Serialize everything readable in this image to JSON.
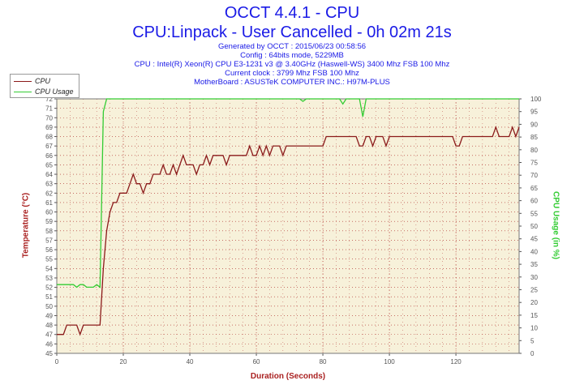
{
  "header": {
    "title": "OCCT 4.4.1 - CPU",
    "subtitle": "CPU:Linpack - User Cancelled - 0h 02m 21s",
    "info_lines": [
      "Generated by OCCT : 2015/06/23 00:58:56",
      "Config : 64bits mode, 5229MB",
      "CPU : Intel(R) Xeon(R) CPU E3-1231 v3 @ 3.40GHz (Haswell-WS) 3400 Mhz FSB 100 Mhz",
      "Current clock : 3799 Mhz FSB 100 Mhz",
      "MotherBoard : ASUSTeK COMPUTER INC.: H97M-PLUS"
    ]
  },
  "colors": {
    "title": "#1a1ae6",
    "cpu_temp": "#8b1a1a",
    "cpu_usage": "#33cc33",
    "plot_bg": "#f7f1da",
    "grid": "#aa2222"
  },
  "chart_data": {
    "type": "line",
    "xlabel": "Duration (Seconds)",
    "ylabel_left": "Temperature (°C)",
    "ylabel_right": "CPU Usage (in %)",
    "xlim": [
      0,
      139
    ],
    "x_ticks": [
      0,
      20,
      40,
      60,
      80,
      100,
      120
    ],
    "ylim_left": [
      45,
      72
    ],
    "y_ticks_left": [
      45,
      46,
      47,
      48,
      49,
      50,
      51,
      52,
      53,
      54,
      55,
      56,
      57,
      58,
      59,
      60,
      61,
      62,
      63,
      64,
      65,
      66,
      67,
      68,
      69,
      70,
      71,
      72
    ],
    "ylim_right": [
      0,
      100
    ],
    "y_ticks_right": [
      0,
      5,
      10,
      15,
      20,
      25,
      30,
      35,
      40,
      45,
      50,
      55,
      60,
      65,
      70,
      75,
      80,
      85,
      90,
      95,
      100
    ],
    "legend": "top-left",
    "grid": true,
    "series": [
      {
        "name": "CPU",
        "axis": "left",
        "points": [
          [
            0,
            47
          ],
          [
            1,
            47
          ],
          [
            2,
            47
          ],
          [
            3,
            48
          ],
          [
            4,
            48
          ],
          [
            5,
            48
          ],
          [
            6,
            48
          ],
          [
            7,
            47
          ],
          [
            8,
            48
          ],
          [
            9,
            48
          ],
          [
            10,
            48
          ],
          [
            11,
            48
          ],
          [
            12,
            48
          ],
          [
            13,
            48
          ],
          [
            14,
            54
          ],
          [
            15,
            58
          ],
          [
            16,
            60
          ],
          [
            17,
            61
          ],
          [
            18,
            61
          ],
          [
            19,
            62
          ],
          [
            20,
            62
          ],
          [
            21,
            62
          ],
          [
            22,
            63
          ],
          [
            23,
            64
          ],
          [
            24,
            63
          ],
          [
            25,
            63
          ],
          [
            26,
            62
          ],
          [
            27,
            63
          ],
          [
            28,
            63
          ],
          [
            29,
            64
          ],
          [
            30,
            64
          ],
          [
            31,
            64
          ],
          [
            32,
            65
          ],
          [
            33,
            64
          ],
          [
            34,
            64
          ],
          [
            35,
            65
          ],
          [
            36,
            64
          ],
          [
            37,
            65
          ],
          [
            38,
            66
          ],
          [
            39,
            65
          ],
          [
            40,
            65
          ],
          [
            41,
            65
          ],
          [
            42,
            64
          ],
          [
            43,
            65
          ],
          [
            44,
            65
          ],
          [
            45,
            66
          ],
          [
            46,
            65
          ],
          [
            47,
            66
          ],
          [
            48,
            66
          ],
          [
            49,
            66
          ],
          [
            50,
            66
          ],
          [
            51,
            65
          ],
          [
            52,
            66
          ],
          [
            53,
            66
          ],
          [
            54,
            66
          ],
          [
            55,
            66
          ],
          [
            56,
            66
          ],
          [
            57,
            66
          ],
          [
            58,
            67
          ],
          [
            59,
            66
          ],
          [
            60,
            66
          ],
          [
            61,
            67
          ],
          [
            62,
            66
          ],
          [
            63,
            67
          ],
          [
            64,
            66
          ],
          [
            65,
            67
          ],
          [
            66,
            67
          ],
          [
            67,
            67
          ],
          [
            68,
            66
          ],
          [
            69,
            67
          ],
          [
            70,
            67
          ],
          [
            71,
            67
          ],
          [
            72,
            67
          ],
          [
            73,
            67
          ],
          [
            74,
            67
          ],
          [
            75,
            67
          ],
          [
            76,
            67
          ],
          [
            77,
            67
          ],
          [
            78,
            67
          ],
          [
            79,
            67
          ],
          [
            80,
            67
          ],
          [
            81,
            68
          ],
          [
            82,
            68
          ],
          [
            83,
            68
          ],
          [
            84,
            68
          ],
          [
            85,
            68
          ],
          [
            86,
            68
          ],
          [
            87,
            68
          ],
          [
            88,
            68
          ],
          [
            89,
            68
          ],
          [
            90,
            68
          ],
          [
            91,
            67
          ],
          [
            92,
            67
          ],
          [
            93,
            68
          ],
          [
            94,
            68
          ],
          [
            95,
            67
          ],
          [
            96,
            68
          ],
          [
            97,
            68
          ],
          [
            98,
            68
          ],
          [
            99,
            67
          ],
          [
            100,
            68
          ],
          [
            101,
            68
          ],
          [
            102,
            68
          ],
          [
            103,
            68
          ],
          [
            104,
            68
          ],
          [
            105,
            68
          ],
          [
            106,
            68
          ],
          [
            107,
            68
          ],
          [
            108,
            68
          ],
          [
            109,
            68
          ],
          [
            110,
            68
          ],
          [
            111,
            68
          ],
          [
            112,
            68
          ],
          [
            113,
            68
          ],
          [
            114,
            68
          ],
          [
            115,
            68
          ],
          [
            116,
            68
          ],
          [
            117,
            68
          ],
          [
            118,
            68
          ],
          [
            119,
            68
          ],
          [
            120,
            67
          ],
          [
            121,
            67
          ],
          [
            122,
            68
          ],
          [
            123,
            68
          ],
          [
            124,
            68
          ],
          [
            125,
            68
          ],
          [
            126,
            68
          ],
          [
            127,
            68
          ],
          [
            128,
            68
          ],
          [
            129,
            68
          ],
          [
            130,
            68
          ],
          [
            131,
            68
          ],
          [
            132,
            69
          ],
          [
            133,
            68
          ],
          [
            134,
            68
          ],
          [
            135,
            68
          ],
          [
            136,
            68
          ],
          [
            137,
            69
          ],
          [
            138,
            68
          ],
          [
            139,
            69
          ]
        ]
      },
      {
        "name": "CPU Usage",
        "axis": "right",
        "points": [
          [
            0,
            27
          ],
          [
            1,
            27
          ],
          [
            2,
            27
          ],
          [
            3,
            27
          ],
          [
            4,
            27
          ],
          [
            5,
            27
          ],
          [
            6,
            26
          ],
          [
            7,
            27
          ],
          [
            8,
            27
          ],
          [
            9,
            26
          ],
          [
            10,
            26
          ],
          [
            11,
            26
          ],
          [
            12,
            27
          ],
          [
            13,
            26
          ],
          [
            14,
            95
          ],
          [
            15,
            100
          ],
          [
            16,
            100
          ],
          [
            40,
            100
          ],
          [
            60,
            100
          ],
          [
            73,
            100
          ],
          [
            74,
            99
          ],
          [
            75,
            100
          ],
          [
            80,
            100
          ],
          [
            85,
            100
          ],
          [
            86,
            98
          ],
          [
            87,
            100
          ],
          [
            90,
            100
          ],
          [
            91,
            100
          ],
          [
            92,
            93
          ],
          [
            93,
            100
          ],
          [
            94,
            100
          ],
          [
            100,
            100
          ],
          [
            120,
            100
          ],
          [
            139,
            100
          ]
        ]
      }
    ]
  }
}
